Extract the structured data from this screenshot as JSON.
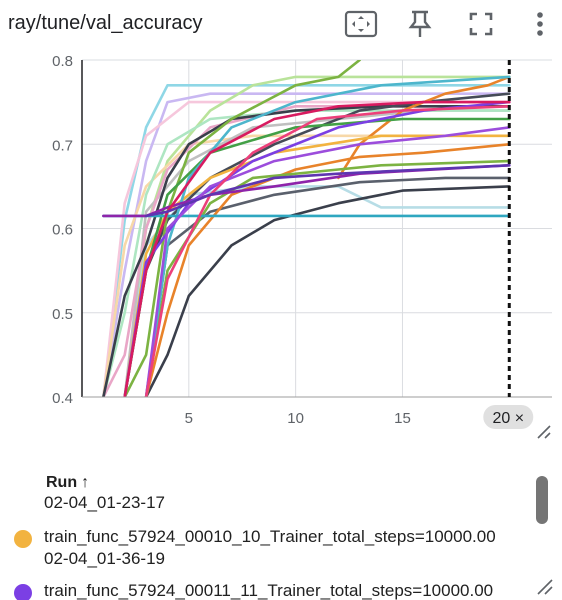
{
  "card": {
    "title": "ray/tune/val_accuracy",
    "toolbar": [
      "fit-domain-icon",
      "pin-icon",
      "fullscreen-icon",
      "more-vert-icon"
    ]
  },
  "chart_data": {
    "type": "line",
    "title": "",
    "xlabel": "",
    "ylabel": "",
    "xlim": [
      0,
      22
    ],
    "ylim": [
      0.4,
      0.8
    ],
    "x_ticks": [
      "5",
      "10",
      "15"
    ],
    "y_ticks": [
      "0.4",
      "0.5",
      "0.6",
      "0.7",
      "0.8"
    ],
    "grid": true,
    "hover_step": 20,
    "hover_label": "20 ×",
    "series": [
      {
        "color": "#8fd7e6",
        "points": [
          [
            1,
            0.4
          ],
          [
            2,
            0.61
          ],
          [
            3,
            0.72
          ],
          [
            4,
            0.77
          ],
          [
            6,
            0.77
          ],
          [
            8,
            0.77
          ],
          [
            12,
            0.77
          ],
          [
            16,
            0.77
          ],
          [
            20,
            0.77
          ]
        ]
      },
      {
        "color": "#c9b8f2",
        "points": [
          [
            1,
            0.4
          ],
          [
            2,
            0.55
          ],
          [
            3,
            0.68
          ],
          [
            4,
            0.75
          ],
          [
            6,
            0.76
          ],
          [
            10,
            0.76
          ],
          [
            15,
            0.76
          ],
          [
            20,
            0.76
          ]
        ]
      },
      {
        "color": "#f6c7dc",
        "points": [
          [
            1,
            0.4
          ],
          [
            2,
            0.63
          ],
          [
            3,
            0.71
          ],
          [
            5,
            0.75
          ],
          [
            8,
            0.75
          ],
          [
            14,
            0.75
          ],
          [
            20,
            0.75
          ]
        ]
      },
      {
        "color": "#b9e39a",
        "points": [
          [
            2,
            0.4
          ],
          [
            3,
            0.6
          ],
          [
            4,
            0.68
          ],
          [
            6,
            0.74
          ],
          [
            8,
            0.77
          ],
          [
            10,
            0.78
          ],
          [
            14,
            0.78
          ],
          [
            20,
            0.78
          ]
        ]
      },
      {
        "color": "#f7d8a8",
        "points": [
          [
            1,
            0.4
          ],
          [
            2,
            0.58
          ],
          [
            3,
            0.65
          ],
          [
            5,
            0.7
          ],
          [
            8,
            0.71
          ],
          [
            12,
            0.71
          ],
          [
            20,
            0.71
          ]
        ]
      },
      {
        "color": "#b7dde6",
        "points": [
          [
            2,
            0.4
          ],
          [
            3,
            0.58
          ],
          [
            5,
            0.64
          ],
          [
            8,
            0.65
          ],
          [
            12,
            0.65
          ],
          [
            14,
            0.625
          ],
          [
            17,
            0.625
          ],
          [
            20,
            0.625
          ]
        ]
      },
      {
        "color": "#c0c0c0",
        "points": [
          [
            2,
            0.4
          ],
          [
            3,
            0.62
          ],
          [
            5,
            0.68
          ],
          [
            8,
            0.72
          ],
          [
            12,
            0.73
          ],
          [
            16,
            0.74
          ],
          [
            20,
            0.74
          ]
        ]
      },
      {
        "color": "#aee6c2",
        "points": [
          [
            1,
            0.4
          ],
          [
            2,
            0.5
          ],
          [
            3,
            0.64
          ],
          [
            4,
            0.7
          ],
          [
            6,
            0.73
          ],
          [
            10,
            0.74
          ],
          [
            20,
            0.74
          ]
        ]
      },
      {
        "color": "#e9a6c7",
        "points": [
          [
            1,
            0.4
          ],
          [
            2,
            0.45
          ],
          [
            3,
            0.6
          ],
          [
            4,
            0.67
          ],
          [
            6,
            0.72
          ],
          [
            10,
            0.745
          ],
          [
            20,
            0.745
          ]
        ]
      },
      {
        "color": "#3a3f4b",
        "points": [
          [
            1,
            0.4
          ],
          [
            2,
            0.52
          ],
          [
            3,
            0.58
          ],
          [
            4,
            0.66
          ],
          [
            5,
            0.7
          ],
          [
            7,
            0.73
          ],
          [
            10,
            0.74
          ],
          [
            14,
            0.745
          ],
          [
            20,
            0.745
          ]
        ]
      },
      {
        "color": "#3a3f4b",
        "points": [
          [
            3,
            0.4
          ],
          [
            4,
            0.45
          ],
          [
            5,
            0.52
          ],
          [
            7,
            0.58
          ],
          [
            9,
            0.61
          ],
          [
            12,
            0.63
          ],
          [
            15,
            0.645
          ],
          [
            20,
            0.65
          ]
        ]
      },
      {
        "color": "#454b57",
        "points": [
          [
            2,
            0.4
          ],
          [
            3,
            0.55
          ],
          [
            4,
            0.61
          ],
          [
            6,
            0.66
          ],
          [
            9,
            0.7
          ],
          [
            13,
            0.74
          ],
          [
            16,
            0.75
          ],
          [
            20,
            0.76
          ]
        ]
      },
      {
        "color": "#5a606c",
        "points": [
          [
            3,
            0.4
          ],
          [
            4,
            0.58
          ],
          [
            6,
            0.62
          ],
          [
            9,
            0.64
          ],
          [
            13,
            0.655
          ],
          [
            17,
            0.66
          ],
          [
            20,
            0.66
          ]
        ]
      },
      {
        "color": "#e8832a",
        "points": [
          [
            3,
            0.4
          ],
          [
            4,
            0.5
          ],
          [
            5,
            0.58
          ],
          [
            7,
            0.64
          ],
          [
            10,
            0.67
          ],
          [
            13,
            0.685
          ],
          [
            16,
            0.69
          ],
          [
            20,
            0.7
          ]
        ]
      },
      {
        "color": "#e8832a",
        "points": [
          [
            12,
            0.66
          ],
          [
            13,
            0.7
          ],
          [
            15,
            0.74
          ],
          [
            17,
            0.76
          ],
          [
            19,
            0.77
          ],
          [
            20,
            0.78
          ]
        ]
      },
      {
        "color": "#f2b340",
        "points": [
          [
            2,
            0.4
          ],
          [
            3,
            0.57
          ],
          [
            4,
            0.62
          ],
          [
            6,
            0.66
          ],
          [
            9,
            0.69
          ],
          [
            14,
            0.71
          ],
          [
            20,
            0.71
          ]
        ]
      },
      {
        "color": "#7cb342",
        "points": [
          [
            2,
            0.4
          ],
          [
            3,
            0.45
          ],
          [
            4,
            0.62
          ],
          [
            5,
            0.69
          ],
          [
            7,
            0.73
          ],
          [
            10,
            0.77
          ],
          [
            12,
            0.78
          ],
          [
            13,
            0.8
          ]
        ]
      },
      {
        "color": "#7cb342",
        "points": [
          [
            3,
            0.4
          ],
          [
            4,
            0.55
          ],
          [
            6,
            0.63
          ],
          [
            8,
            0.66
          ],
          [
            12,
            0.67
          ],
          [
            14,
            0.675
          ],
          [
            20,
            0.68
          ]
        ]
      },
      {
        "color": "#43a047",
        "points": [
          [
            2,
            0.4
          ],
          [
            3,
            0.55
          ],
          [
            4,
            0.64
          ],
          [
            6,
            0.69
          ],
          [
            10,
            0.72
          ],
          [
            15,
            0.73
          ],
          [
            20,
            0.73
          ]
        ]
      },
      {
        "color": "#4db6cc",
        "points": [
          [
            3,
            0.4
          ],
          [
            4,
            0.58
          ],
          [
            5,
            0.66
          ],
          [
            7,
            0.72
          ],
          [
            10,
            0.75
          ],
          [
            14,
            0.77
          ],
          [
            20,
            0.78
          ]
        ]
      },
      {
        "color": "#2fa7c0",
        "points": [
          [
            1,
            0.615
          ],
          [
            3,
            0.615
          ],
          [
            5,
            0.615
          ],
          [
            8,
            0.615
          ],
          [
            12,
            0.615
          ],
          [
            16,
            0.615
          ],
          [
            20,
            0.615
          ]
        ]
      },
      {
        "color": "#8e24aa",
        "points": [
          [
            1,
            0.615
          ],
          [
            3,
            0.615
          ],
          [
            4,
            0.625
          ],
          [
            6,
            0.64
          ],
          [
            9,
            0.65
          ],
          [
            13,
            0.665
          ],
          [
            20,
            0.675
          ]
        ]
      },
      {
        "color": "#7b3fe4",
        "points": [
          [
            2,
            0.4
          ],
          [
            3,
            0.56
          ],
          [
            5,
            0.63
          ],
          [
            8,
            0.68
          ],
          [
            12,
            0.72
          ],
          [
            16,
            0.74
          ],
          [
            20,
            0.75
          ]
        ]
      },
      {
        "color": "#9c4ddc",
        "points": [
          [
            3,
            0.4
          ],
          [
            4,
            0.6
          ],
          [
            6,
            0.65
          ],
          [
            9,
            0.68
          ],
          [
            13,
            0.7
          ],
          [
            17,
            0.71
          ],
          [
            20,
            0.72
          ]
        ]
      },
      {
        "color": "#d81b60",
        "points": [
          [
            2,
            0.4
          ],
          [
            3,
            0.55
          ],
          [
            4,
            0.62
          ],
          [
            6,
            0.69
          ],
          [
            9,
            0.73
          ],
          [
            12,
            0.745
          ],
          [
            16,
            0.75
          ],
          [
            20,
            0.75
          ]
        ]
      },
      {
        "color": "#ec407a",
        "points": [
          [
            3,
            0.4
          ],
          [
            4,
            0.54
          ],
          [
            6,
            0.64
          ],
          [
            8,
            0.69
          ],
          [
            11,
            0.73
          ],
          [
            15,
            0.74
          ],
          [
            20,
            0.745
          ]
        ]
      },
      {
        "color": "#5e35b1",
        "points": [
          [
            3,
            0.615
          ],
          [
            4,
            0.62
          ],
          [
            6,
            0.64
          ],
          [
            9,
            0.66
          ],
          [
            12,
            0.665
          ],
          [
            16,
            0.67
          ],
          [
            20,
            0.675
          ]
        ]
      }
    ]
  },
  "runs": {
    "header": "Run",
    "sort_indicator": "↑",
    "items": [
      {
        "name": "",
        "time": "02-04_01-23-17",
        "color": ""
      },
      {
        "name": "train_func_57924_00010_10_Trainer_total_steps=10000.00",
        "time": "02-04_01-36-19",
        "color": "#f2b340"
      },
      {
        "name": "train_func_57924_00011_11_Trainer_total_steps=10000.00",
        "time": "",
        "color": "#7b3fe4"
      }
    ]
  }
}
